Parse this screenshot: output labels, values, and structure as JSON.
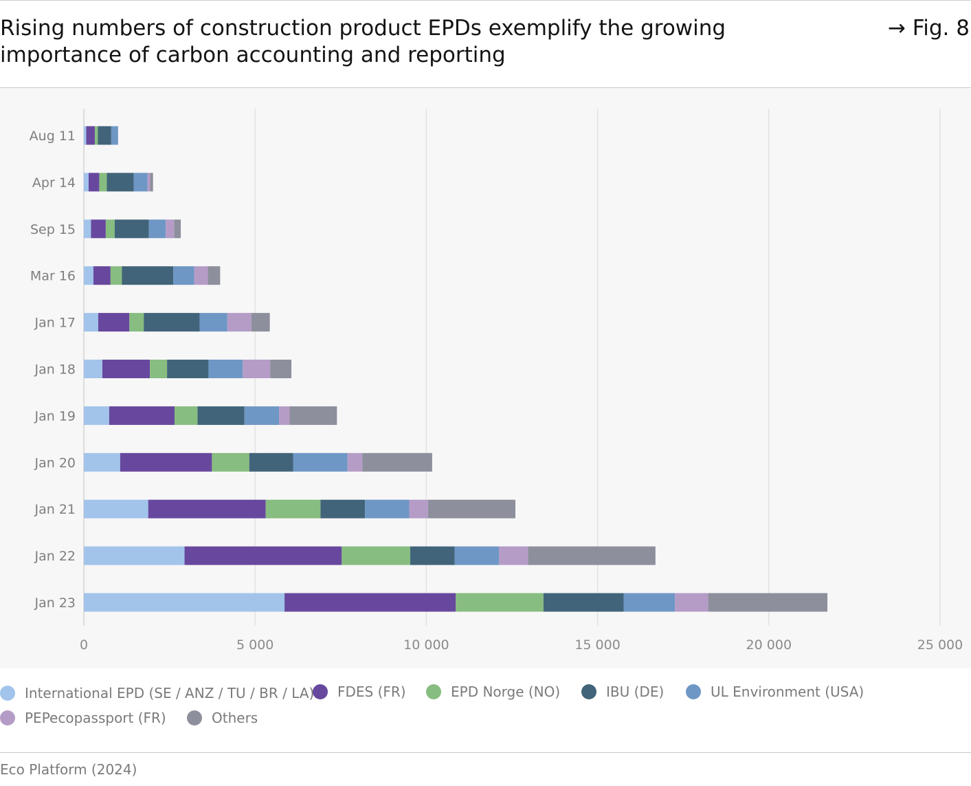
{
  "header": {
    "title": "Rising numbers of construction product EPDs exemplify the growing importance of carbon accounting and reporting",
    "fig_ref": "→ Fig. 8"
  },
  "footer": {
    "source": "Eco Platform (2024)"
  },
  "chart_data": {
    "type": "bar",
    "orientation": "horizontal",
    "stacked": true,
    "title": "",
    "xlabel": "",
    "ylabel": "",
    "xlim": [
      0,
      25000
    ],
    "x_ticks": [
      0,
      5000,
      10000,
      15000,
      20000,
      25000
    ],
    "x_tick_labels": [
      "0",
      "5 000",
      "10 000",
      "15 000",
      "20 000",
      "25 000"
    ],
    "grid": "vertical",
    "legend_position": "bottom",
    "categories": [
      "Aug 11",
      "Apr 14",
      "Sep 15",
      "Mar 16",
      "Jan 17",
      "Jan 18",
      "Jan 19",
      "Jan 20",
      "Jan 21",
      "Jan 22",
      "Jan 23"
    ],
    "series": [
      {
        "name": "International EPD (SE / ANZ / TU / BR / LA)",
        "color": "#a2c4eb",
        "values": [
          70,
          140,
          210,
          280,
          420,
          540,
          740,
          1060,
          1880,
          2940,
          5860
        ]
      },
      {
        "name": "FDES (FR)",
        "color": "#68489e",
        "values": [
          250,
          310,
          430,
          500,
          910,
          1390,
          1910,
          2680,
          3430,
          4590,
          5000
        ]
      },
      {
        "name": "EPD Norge (NO)",
        "color": "#87bd80",
        "values": [
          90,
          220,
          260,
          330,
          420,
          500,
          670,
          1090,
          1600,
          2000,
          2560
        ]
      },
      {
        "name": "IBU (DE)",
        "color": "#42647a",
        "values": [
          390,
          790,
          1000,
          1500,
          1630,
          1210,
          1370,
          1280,
          1300,
          1300,
          2340
        ]
      },
      {
        "name": "UL Environment (USA)",
        "color": "#6e97c5",
        "values": [
          200,
          400,
          490,
          610,
          810,
          1000,
          1010,
          1590,
          1290,
          1290,
          1500
        ]
      },
      {
        "name": "PEPecopassport (FR)",
        "color": "#b59cc7",
        "values": [
          0,
          70,
          250,
          400,
          700,
          800,
          310,
          430,
          550,
          850,
          970
        ]
      },
      {
        "name": "Others",
        "color": "#8d8f9c",
        "values": [
          0,
          90,
          190,
          360,
          540,
          620,
          1380,
          2040,
          2550,
          3720,
          3480
        ]
      }
    ]
  }
}
